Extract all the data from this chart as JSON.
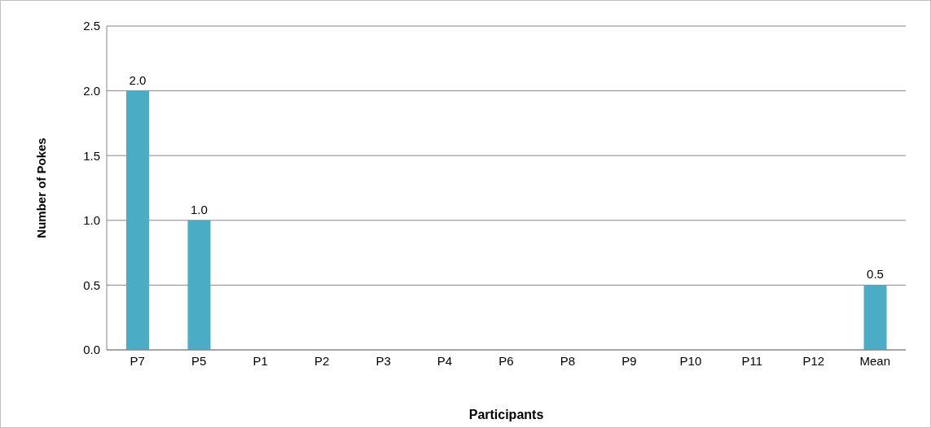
{
  "chart_data": {
    "type": "bar",
    "xlabel": "Participants",
    "ylabel": "Number of Pokes",
    "categories": [
      "P7",
      "P5",
      "P1",
      "P2",
      "P3",
      "P4",
      "P6",
      "P8",
      "P9",
      "P10",
      "P11",
      "P12",
      "Mean"
    ],
    "values": [
      2.0,
      1.0,
      0,
      0,
      0,
      0,
      0,
      0,
      0,
      0,
      0,
      0,
      0.5
    ],
    "value_labels": [
      "2.0",
      "1.0",
      null,
      null,
      null,
      null,
      null,
      null,
      null,
      null,
      null,
      null,
      "0.5"
    ],
    "color": "#4bacc6",
    "ylim": [
      0,
      2.5
    ],
    "yticks": [
      {
        "value": 0,
        "label": "0.0"
      },
      {
        "value": 0.5,
        "label": "0.5"
      },
      {
        "value": 1,
        "label": "1.0"
      },
      {
        "value": 1.5,
        "label": "1.5"
      },
      {
        "value": 2,
        "label": "2.0"
      },
      {
        "value": 2.5,
        "label": "2.5"
      }
    ],
    "grid": "y",
    "legend": false
  }
}
